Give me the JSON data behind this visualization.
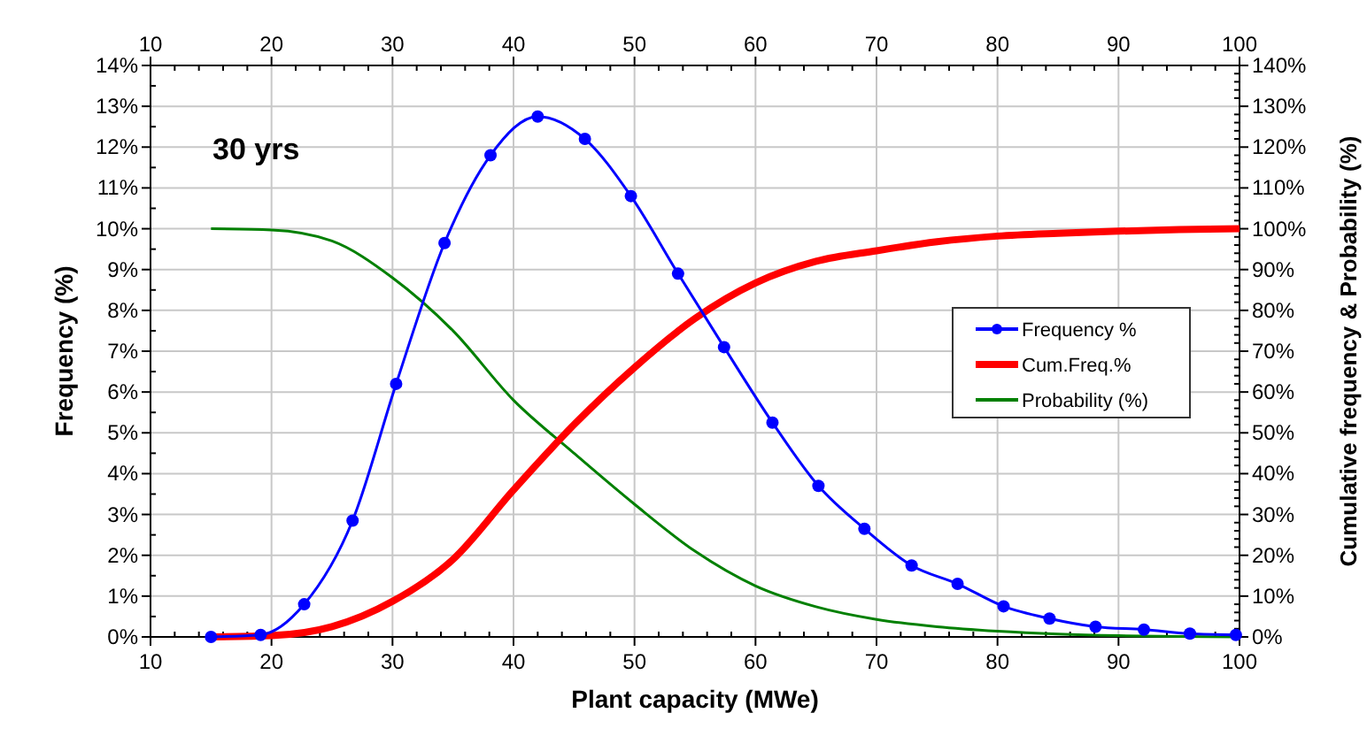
{
  "chart_data": {
    "type": "line",
    "xlabel": "Plant capacity (MWe)",
    "ylabel": "Frequency (%)",
    "y2label": "Cumulative frequency & Probability (%)",
    "annotations": [
      "30 yrs"
    ],
    "xlim": [
      10,
      100
    ],
    "xticks": [
      10,
      20,
      30,
      40,
      50,
      60,
      70,
      80,
      90,
      100
    ],
    "x2lim": [
      10,
      100
    ],
    "x2ticks": [
      10,
      20,
      30,
      40,
      50,
      60,
      70,
      80,
      90,
      100
    ],
    "ylim": [
      0,
      14
    ],
    "yticks": [
      {
        "value": 0,
        "label": "0%"
      },
      {
        "value": 1,
        "label": "1%"
      },
      {
        "value": 2,
        "label": "2%"
      },
      {
        "value": 3,
        "label": "3%"
      },
      {
        "value": 4,
        "label": "4%"
      },
      {
        "value": 5,
        "label": "5%"
      },
      {
        "value": 6,
        "label": "6%"
      },
      {
        "value": 7,
        "label": "7%"
      },
      {
        "value": 8,
        "label": "8%"
      },
      {
        "value": 9,
        "label": "9%"
      },
      {
        "value": 10,
        "label": "10%"
      },
      {
        "value": 11,
        "label": "11%"
      },
      {
        "value": 12,
        "label": "12%"
      },
      {
        "value": 13,
        "label": "13%"
      },
      {
        "value": 14,
        "label": "14%"
      }
    ],
    "y2lim": [
      0,
      140
    ],
    "y2ticks": [
      {
        "value": 0,
        "label": "0%"
      },
      {
        "value": 10,
        "label": "10%"
      },
      {
        "value": 20,
        "label": "20%"
      },
      {
        "value": 30,
        "label": "30%"
      },
      {
        "value": 40,
        "label": "40%"
      },
      {
        "value": 50,
        "label": "50%"
      },
      {
        "value": 60,
        "label": "60%"
      },
      {
        "value": 70,
        "label": "70%"
      },
      {
        "value": 80,
        "label": "80%"
      },
      {
        "value": 90,
        "label": "90%"
      },
      {
        "value": 100,
        "label": "100%"
      },
      {
        "value": 110,
        "label": "110%"
      },
      {
        "value": 120,
        "label": "120%"
      },
      {
        "value": 130,
        "label": "130%"
      },
      {
        "value": 140,
        "label": "140%"
      }
    ],
    "grid": true,
    "legend": "right",
    "series": [
      {
        "name": "Frequency %",
        "color": "#0000ff",
        "marker": "circle",
        "x": [
          15,
          19.1,
          22.7,
          26.7,
          30.3,
          34.3,
          38.1,
          42,
          45.9,
          49.7,
          53.6,
          57.4,
          61.4,
          65.2,
          69,
          72.9,
          76.7,
          80.5,
          84.3,
          88.1,
          92.1,
          95.9,
          99.7
        ],
        "values": [
          0,
          0.05,
          0.8,
          2.85,
          6.2,
          9.65,
          11.8,
          12.75,
          12.2,
          10.8,
          8.9,
          7.1,
          5.25,
          3.7,
          2.65,
          1.75,
          1.3,
          0.75,
          0.45,
          0.25,
          0.18,
          0.08,
          0.05
        ]
      },
      {
        "name": "Cum.Freq.%",
        "color": "#ff0000",
        "marker": "none",
        "axis": "y2",
        "x": [
          15,
          20,
          25,
          30,
          35,
          40,
          45,
          50,
          55,
          60,
          65,
          70,
          75,
          80,
          85,
          90,
          95,
          100
        ],
        "values": [
          0,
          0.3,
          2.5,
          8.7,
          19,
          36,
          52,
          66,
          78,
          86.7,
          92,
          94.6,
          96.8,
          98.2,
          98.9,
          99.4,
          99.8,
          100
        ]
      },
      {
        "name": "Probability (%)",
        "color": "#008000",
        "marker": "none",
        "axis": "y2",
        "x": [
          15,
          20,
          25,
          30,
          35,
          40,
          45,
          50,
          55,
          60,
          65,
          70,
          75,
          80,
          85,
          90,
          95,
          100
        ],
        "values": [
          100,
          99.7,
          97,
          88,
          75,
          58,
          45,
          32.5,
          21,
          12.5,
          7.4,
          4.3,
          2.5,
          1.4,
          0.7,
          0.3,
          0.1,
          0
        ]
      }
    ]
  }
}
